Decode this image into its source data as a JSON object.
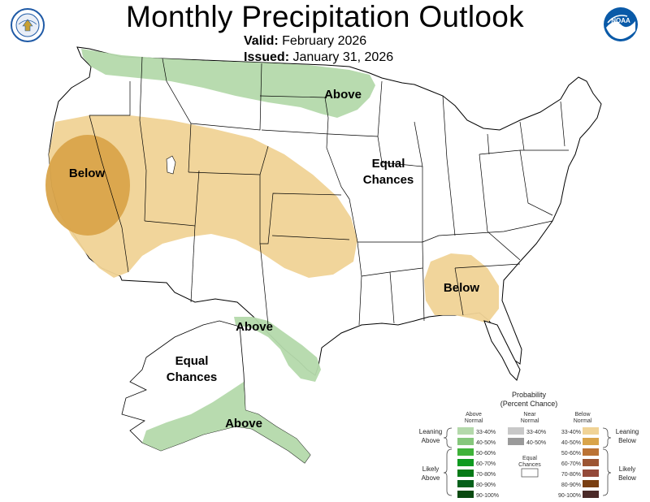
{
  "header": {
    "title": "Monthly Precipitation Outlook",
    "valid_label": "Valid:",
    "valid_value": "February 2026",
    "issued_label": "Issued:",
    "issued_value": "January 31, 2026"
  },
  "map_labels": {
    "above_north": "Above",
    "below_west": "Below",
    "equal_line1": "Equal",
    "equal_line2": "Chances",
    "below_southeast": "Below",
    "above_texas": "Above",
    "alaska_equal_line1": "Equal",
    "alaska_equal_line2": "Chances",
    "above_alaska": "Above"
  },
  "legend": {
    "title_line1": "Probability",
    "title_line2": "(Percent Chance)",
    "above_header_1": "Above",
    "above_header_2": "Normal",
    "near_header_1": "Near",
    "near_header_2": "Normal",
    "below_header_1": "Below",
    "below_header_2": "Normal",
    "leaning_above_1": "Leaning",
    "leaning_above_2": "Above",
    "likely_above_1": "Likely",
    "likely_above_2": "Above",
    "leaning_below_1": "Leaning",
    "leaning_below_2": "Below",
    "likely_below_1": "Likely",
    "likely_below_2": "Below",
    "equal_1": "Equal",
    "equal_2": "Chances",
    "above_bins": [
      {
        "label": "33-40%",
        "color": "#b4d9ab"
      },
      {
        "label": "40-50%",
        "color": "#86c77c"
      },
      {
        "label": "50-60%",
        "color": "#3fb23a"
      },
      {
        "label": "60-70%",
        "color": "#0f9a20"
      },
      {
        "label": "70-80%",
        "color": "#067a17"
      },
      {
        "label": "80-90%",
        "color": "#05601a"
      },
      {
        "label": "90-100%",
        "color": "#0b4a11"
      }
    ],
    "near_bins": [
      {
        "label": "33-40%",
        "color": "#c8c8c8"
      },
      {
        "label": "40-50%",
        "color": "#9a9a9a"
      }
    ],
    "below_bins": [
      {
        "label": "33-40%",
        "color": "#f0d396"
      },
      {
        "label": "40-50%",
        "color": "#d9a44a"
      },
      {
        "label": "50-60%",
        "color": "#bb7335"
      },
      {
        "label": "60-70%",
        "color": "#9c5533"
      },
      {
        "label": "70-80%",
        "color": "#944a3a"
      },
      {
        "label": "80-90%",
        "color": "#7a3f12"
      },
      {
        "label": "90-100%",
        "color": "#4b2a28"
      }
    ]
  },
  "colors": {
    "above_33_40": "#b4d9ab",
    "below_33_40": "#f0d396",
    "below_40_50": "#d9a44a",
    "border": "#000000"
  },
  "logos": {
    "left": "commerce-seal-icon",
    "right": "noaa-logo-icon",
    "noaa_text": "NOAA"
  }
}
